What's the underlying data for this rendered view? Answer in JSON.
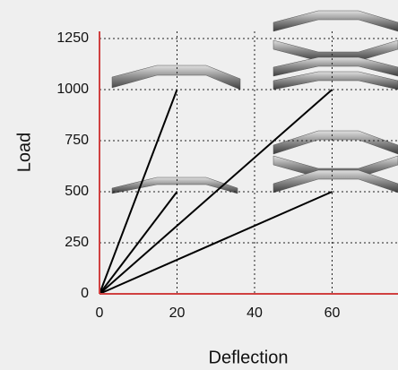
{
  "chart_data": {
    "type": "line",
    "x_label": "Deflection",
    "y_label": "Load",
    "series": [
      {
        "color": "#000000",
        "x": [
          0,
          20
        ],
        "values": [
          0,
          1000
        ]
      },
      {
        "color": "#000000",
        "x": [
          0,
          20
        ],
        "values": [
          0,
          500
        ]
      },
      {
        "color": "#000000",
        "x": [
          0,
          60
        ],
        "values": [
          0,
          1000
        ]
      },
      {
        "color": "#000000",
        "x": [
          0,
          60
        ],
        "values": [
          0,
          500
        ]
      }
    ],
    "xlim": [
      0,
      77
    ],
    "ylim": [
      0,
      1285
    ],
    "xticks": [
      0,
      20,
      40,
      60
    ],
    "yticks": [
      0,
      250,
      500,
      750,
      1000,
      1250
    ],
    "grid": true,
    "axis_color": "#d04040"
  }
}
